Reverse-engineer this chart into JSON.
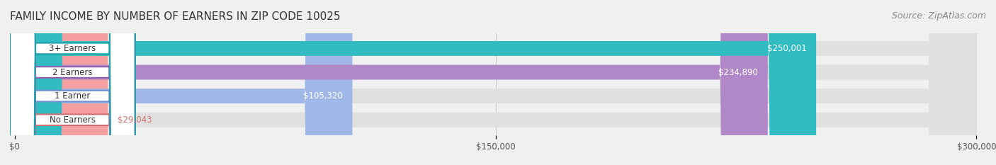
{
  "title": "FAMILY INCOME BY NUMBER OF EARNERS IN ZIP CODE 10025",
  "source": "Source: ZipAtlas.com",
  "categories": [
    "No Earners",
    "1 Earner",
    "2 Earners",
    "3+ Earners"
  ],
  "values": [
    29043,
    105320,
    234890,
    250001
  ],
  "bar_colors": [
    "#f4a0a0",
    "#a0b8e8",
    "#b088c8",
    "#30bcc0"
  ],
  "label_colors": [
    "#d07070",
    "#7090d0",
    "#9060b0",
    "#20a0a8"
  ],
  "value_labels": [
    "$29,043",
    "$105,320",
    "$234,890",
    "$250,001"
  ],
  "xmax": 300000,
  "xticks": [
    0,
    150000,
    300000
  ],
  "xtick_labels": [
    "$0",
    "$150,000",
    "$300,000"
  ],
  "background_color": "#f0f0f0",
  "bar_background": "#e8e8e8",
  "title_fontsize": 11,
  "source_fontsize": 9,
  "bar_height": 0.62,
  "figsize": [
    14.06,
    2.33
  ],
  "dpi": 100
}
